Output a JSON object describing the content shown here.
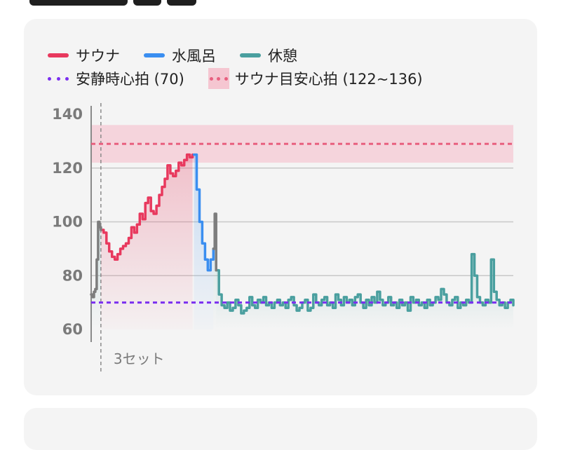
{
  "colors": {
    "sauna": "#e8395e",
    "cold_bath": "#3a8ef0",
    "rest": "#4a9f9f",
    "transition": "#7d7d7d",
    "resting_hr_line": "#7b2ff0",
    "sauna_target_band": "#f5c6d1",
    "sauna_target_line": "#e8607f",
    "grid": "#c8c8c8",
    "card_bg": "#f4f4f4"
  },
  "legend": {
    "sauna": "サウナ",
    "cold_bath": "水風呂",
    "rest": "休憩",
    "resting_hr": "安静時心拍 (70)",
    "sauna_target": "サウナ目安心拍 (122~136)"
  },
  "chart_data": {
    "type": "line",
    "title": "",
    "xlabel": "",
    "ylabel": "",
    "ylim": [
      60,
      140
    ],
    "yticks": [
      60,
      80,
      100,
      120,
      140
    ],
    "grid": true,
    "legend_position": "top",
    "reference_lines": [
      {
        "name": "安静時心拍",
        "value": 70,
        "style": "dotted"
      },
      {
        "name": "サウナ目安心拍",
        "band": [
          122,
          136
        ],
        "value": 129,
        "style": "dotted"
      }
    ],
    "set_marker": {
      "label": "3セット",
      "x": 7
    },
    "series": [
      {
        "name": "サウナ",
        "x": [
          7,
          9,
          11,
          13,
          15,
          17,
          19,
          21,
          23,
          25,
          27,
          29,
          31,
          33,
          35,
          37,
          39,
          41,
          43,
          45,
          47,
          49,
          51,
          53,
          55,
          57,
          59,
          61,
          63,
          65,
          67,
          69,
          71,
          73
        ],
        "values": [
          97,
          96,
          92,
          89,
          87,
          86,
          88,
          90,
          91,
          92,
          94,
          98,
          96,
          99,
          103,
          101,
          107,
          109,
          104,
          103,
          106,
          110,
          113,
          116,
          121,
          118,
          117,
          119,
          122,
          121,
          123,
          125,
          124,
          125
        ]
      },
      {
        "name": "水風呂",
        "x": [
          74,
          76,
          78,
          80,
          82,
          84,
          86,
          88
        ],
        "values": [
          125,
          112,
          100,
          92,
          86,
          82,
          86,
          90
        ]
      },
      {
        "name": "休憩",
        "x": [
          90,
          92,
          94,
          96,
          98,
          100,
          102,
          104,
          106,
          108,
          110,
          112,
          114,
          116,
          118,
          120,
          122,
          124,
          126,
          128,
          130,
          132,
          134,
          136,
          138,
          140,
          142,
          144,
          146,
          148,
          150,
          152,
          154,
          156,
          158,
          160,
          162,
          164,
          166,
          168,
          170,
          172,
          174,
          176,
          178,
          180,
          182,
          184,
          186,
          188,
          190,
          192,
          194,
          196,
          198,
          200,
          202,
          204,
          206,
          208,
          210,
          212,
          214,
          216,
          218,
          220,
          222,
          224,
          226,
          228,
          230,
          232,
          234,
          236,
          238,
          240,
          242,
          244,
          246,
          248,
          250,
          252,
          254,
          256,
          258,
          260,
          262,
          264,
          266,
          268,
          270,
          272,
          274,
          276,
          278,
          280,
          282,
          284,
          286,
          288,
          290,
          292,
          294,
          296,
          298,
          300,
          302,
          304
        ],
        "values": [
          82,
          73,
          69,
          68,
          70,
          67,
          68,
          71,
          69,
          66,
          67,
          68,
          72,
          69,
          68,
          71,
          70,
          72,
          69,
          70,
          68,
          70,
          71,
          69,
          70,
          68,
          71,
          72,
          69,
          67,
          68,
          70,
          71,
          67,
          68,
          73,
          70,
          69,
          71,
          72,
          69,
          70,
          68,
          73,
          71,
          69,
          72,
          70,
          71,
          69,
          72,
          73,
          70,
          68,
          71,
          69,
          72,
          70,
          74,
          71,
          69,
          70,
          72,
          69,
          70,
          68,
          71,
          69,
          70,
          67,
          72,
          70,
          71,
          69,
          70,
          68,
          71,
          69,
          70,
          72,
          71,
          75,
          73,
          70,
          69,
          71,
          72,
          68,
          70,
          69,
          71,
          70,
          88,
          80,
          72,
          70,
          69,
          71,
          70,
          86,
          74,
          71,
          69,
          70,
          68,
          70,
          71,
          69
        ]
      },
      {
        "name": "",
        "x": [
          0,
          1,
          2,
          3,
          4,
          5,
          6,
          7
        ],
        "values": [
          73,
          72,
          74,
          75,
          86,
          100,
          98,
          97
        ]
      },
      {
        "name": "",
        "x": [
          88,
          89,
          90
        ],
        "values": [
          90,
          103,
          82
        ]
      }
    ],
    "xlim": [
      0,
      304
    ]
  }
}
